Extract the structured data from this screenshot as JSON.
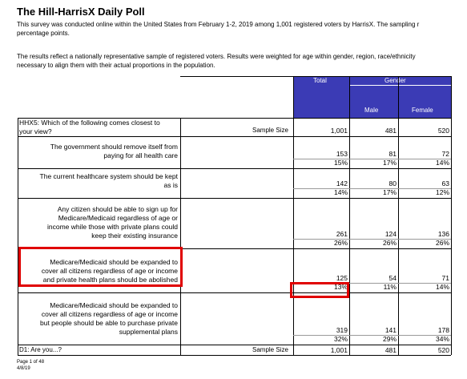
{
  "title": "The Hill-HarrisX Daily Poll",
  "intro": {
    "line1": "This survey was conducted online within the United States from February 1-2, 2019 among 1,001 registered voters by HarrisX. The sampling r",
    "line2": "percentage points.",
    "line3": "The results reflect a nationally representative sample of registered voters. Results were weighted for age within gender, region, race/ethnicity",
    "line4": "necessary to align them with their actual proportions in the population."
  },
  "headers": {
    "total": "Total",
    "gender": "Gender",
    "male": "Male",
    "female": "Female"
  },
  "question": {
    "code_line1": "HHX5: Which of the following comes closest to",
    "code_line2": "your view?",
    "sample_label": "Sample Size",
    "sample": {
      "total": "1,001",
      "male": "481",
      "female": "520"
    }
  },
  "rows": [
    {
      "lines": [
        "The government should remove itself from",
        "paying for all health care"
      ],
      "count": {
        "total": "153",
        "male": "81",
        "female": "72"
      },
      "pct": {
        "total": "15%",
        "male": "17%",
        "female": "14%"
      }
    },
    {
      "lines": [
        "The current healthcare system should be kept",
        "as is"
      ],
      "count": {
        "total": "142",
        "male": "80",
        "female": "63"
      },
      "pct": {
        "total": "14%",
        "male": "17%",
        "female": "12%"
      }
    },
    {
      "lines": [
        "Any citizen should be able to sign up for",
        "Medicare/Medicaid regardless of age or",
        "income while those with private plans could",
        "keep their existing insurance"
      ],
      "count": {
        "total": "261",
        "male": "124",
        "female": "136"
      },
      "pct": {
        "total": "26%",
        "male": "26%",
        "female": "26%"
      }
    },
    {
      "lines": [
        "Medicare/Medicaid should be expanded to",
        "cover all citizens regardless of age or income",
        "and private health plans should be abolished"
      ],
      "count": {
        "total": "125",
        "male": "54",
        "female": "71"
      },
      "pct": {
        "total": "13%",
        "male": "11%",
        "female": "14%"
      }
    },
    {
      "lines": [
        "Medicare/Medicaid should be expanded to",
        "cover all citizens regardless of age or income",
        "but people should be able to purchase private",
        "supplemental plans"
      ],
      "count": {
        "total": "319",
        "male": "141",
        "female": "178"
      },
      "pct": {
        "total": "32%",
        "male": "29%",
        "female": "34%"
      }
    }
  ],
  "d1": {
    "label": "D1: Are you...?",
    "sample_label": "Sample Size",
    "sample": {
      "total": "1,001",
      "male": "481",
      "female": "520"
    }
  },
  "footer": {
    "page": "Page 1 of 48",
    "date": "4/8/19"
  },
  "colors": {
    "header_bg": "#3b3bb5",
    "highlight": "#e00000"
  }
}
